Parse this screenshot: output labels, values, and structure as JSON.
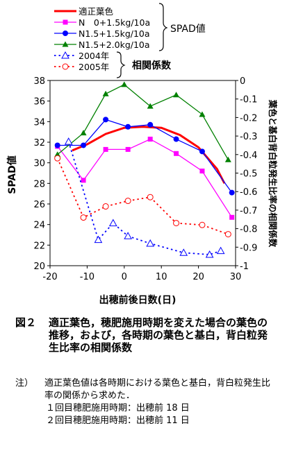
{
  "chart_data": {
    "type": "line",
    "xlabel": "出穂前後日数(日)",
    "ylabel": "SPAD値",
    "y2label": "葉色と基白背白粒発生比率の相関係数",
    "xlim": [
      -20,
      30
    ],
    "ylim": [
      20,
      38
    ],
    "y2lim": [
      -1,
      0
    ],
    "xticks": [
      "-20",
      "-10",
      "0",
      "10",
      "20",
      "30"
    ],
    "yticks": [
      "20",
      "22",
      "24",
      "26",
      "28",
      "30",
      "32",
      "34",
      "36",
      "38"
    ],
    "y2ticks": [
      "-1",
      "-0.9",
      "-0.8",
      "-0.7",
      "-0.6",
      "-0.5",
      "-0.4",
      "-0.3",
      "-0.2",
      "-0.1",
      "0"
    ],
    "legend_group_spad": "SPAD値",
    "legend_group_corr": "相関係数",
    "series": [
      {
        "name": "適正葉色",
        "axis": "left",
        "color": "#ff0000",
        "style": "thick",
        "marker": "none",
        "x": [
          -14,
          -10,
          -5,
          0,
          5,
          10,
          15,
          20,
          25,
          27
        ],
        "y": [
          31.2,
          31.8,
          32.8,
          33.4,
          33.5,
          33.4,
          32.7,
          31.5,
          29.4,
          28.0
        ]
      },
      {
        "name": "N　0+1.5kg/10a",
        "axis": "left",
        "color": "#ff00ff",
        "style": "solid",
        "marker": "square",
        "x": [
          -18,
          -11,
          -5,
          1,
          7,
          14,
          21,
          29
        ],
        "y": [
          31.6,
          28.3,
          31.3,
          31.3,
          32.3,
          30.9,
          29.2,
          24.7
        ]
      },
      {
        "name": "N1.5+1.5kg/10a",
        "axis": "left",
        "color": "#0000ff",
        "style": "solid",
        "marker": "circle",
        "x": [
          -18,
          -11,
          -5,
          1,
          7,
          14,
          21,
          29
        ],
        "y": [
          31.7,
          31.7,
          34.2,
          33.5,
          33.7,
          32.3,
          31.1,
          27.1
        ]
      },
      {
        "name": "N1.5+2.0kg/10a",
        "axis": "left",
        "color": "#008000",
        "style": "solid",
        "marker": "triangle",
        "x": [
          -18,
          -11,
          -5,
          0,
          7,
          14,
          21,
          28
        ],
        "y": [
          30.8,
          32.9,
          36.7,
          37.6,
          35.5,
          36.6,
          34.7,
          30.3
        ]
      },
      {
        "name": "2004年",
        "axis": "right",
        "color": "#0000ff",
        "style": "dotted",
        "marker": "triangle-open",
        "x": [
          -15,
          -7,
          -3,
          1,
          7,
          16,
          23,
          26
        ],
        "y": [
          -0.33,
          -0.86,
          -0.77,
          -0.84,
          -0.88,
          -0.93,
          -0.94,
          -0.92
        ]
      },
      {
        "name": "2005年",
        "axis": "right",
        "color": "#ff0000",
        "style": "dotted",
        "marker": "circle-open",
        "x": [
          -18,
          -11,
          -5,
          1,
          7,
          14,
          21,
          28
        ],
        "y": [
          -0.42,
          -0.74,
          -0.68,
          -0.65,
          -0.63,
          -0.77,
          -0.78,
          -0.83
        ]
      }
    ]
  },
  "caption": {
    "number": "図２",
    "title": "適正葉色，穂肥施用時期を変えた場合の葉色の推移，および，各時期の葉色と基白，背白粒発生比率の相関係数"
  },
  "notes": {
    "head": "注）",
    "body": "適正葉色値は各時期における葉色と基白，背白粒発生比率の関係から求めた．",
    "line1": "１回目穂肥施用時期：出穂前 18 日",
    "line2": "２回目穂肥施用時期：出穂前 11 日"
  }
}
